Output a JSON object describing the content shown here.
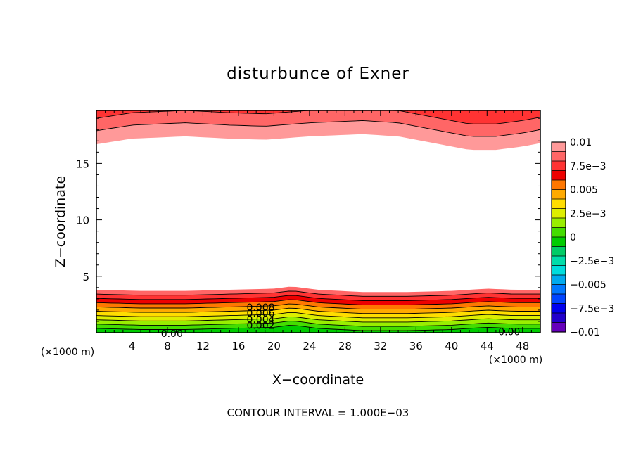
{
  "chart_data": {
    "type": "heatmap",
    "title": "disturbunce of Exner",
    "xlabel": "X−coordinate",
    "ylabel": "Z−coordinate",
    "x_unit_left": "(×1000 m)",
    "x_unit_right": "(×1000 m)",
    "xlim": [
      0,
      50
    ],
    "ylim": [
      0,
      19.7
    ],
    "x_ticks": [
      4,
      8,
      12,
      16,
      20,
      24,
      28,
      32,
      36,
      40,
      44,
      48
    ],
    "y_ticks": [
      5,
      10,
      15
    ],
    "footer": "CONTOUR INTERVAL = 1.000E−03",
    "colorbar": {
      "min": -0.01,
      "max": 0.01,
      "labels": [
        "0.01",
        "7.5e−3",
        "0.005",
        "2.5e−3",
        "0",
        "−2.5e−3",
        "−0.005",
        "−7.5e−3",
        "−0.01"
      ],
      "label_values": [
        0.01,
        0.0075,
        0.005,
        0.0025,
        0,
        -0.0025,
        -0.005,
        -0.0075,
        -0.01
      ],
      "colors": [
        "#ff9999",
        "#ff6666",
        "#ff3333",
        "#ee0000",
        "#ff7700",
        "#ffaa00",
        "#ffdd00",
        "#ddee00",
        "#99ee00",
        "#44dd00",
        "#00cc00",
        "#00cc66",
        "#00ddaa",
        "#00dddd",
        "#00aaee",
        "#0077ff",
        "#0044ff",
        "#0000ee",
        "#2200cc",
        "#6600bb"
      ]
    },
    "contour_labels": [
      {
        "text": "0.008",
        "x": 18.5,
        "z": 2.25
      },
      {
        "text": "0.006",
        "x": 18.5,
        "z": 1.75
      },
      {
        "text": "0.004",
        "x": 18.5,
        "z": 1.2
      },
      {
        "text": "0.002",
        "x": 18.5,
        "z": 0.65
      },
      {
        "text": "0.00",
        "x": 8.5,
        "z": -0.05
      },
      {
        "text": "0.00",
        "x": 46.5,
        "z": 0.1
      }
    ],
    "bottom_layer_base": {
      "x": [
        0,
        5,
        10,
        15,
        20,
        22,
        25,
        30,
        35,
        40,
        44,
        47,
        50
      ],
      "z": [
        3.8,
        3.7,
        3.7,
        3.8,
        3.9,
        4.1,
        3.8,
        3.6,
        3.6,
        3.7,
        3.9,
        3.8,
        3.8
      ]
    },
    "bottom_levels": [
      0.0085,
      0.0075,
      0.0065,
      0.0055,
      0.0045,
      0.0035,
      0.0025,
      0.0015,
      0.0005,
      0.0
    ],
    "top_layer_base": {
      "x": [
        0,
        4,
        10,
        15,
        19,
        24,
        30,
        34,
        38,
        42,
        45,
        48,
        50
      ],
      "z": [
        16.7,
        17.2,
        17.4,
        17.2,
        17.1,
        17.4,
        17.6,
        17.4,
        16.8,
        16.2,
        16.2,
        16.5,
        16.8
      ]
    },
    "top_levels": [
      0.0095,
      0.0085,
      0.0075
    ]
  }
}
